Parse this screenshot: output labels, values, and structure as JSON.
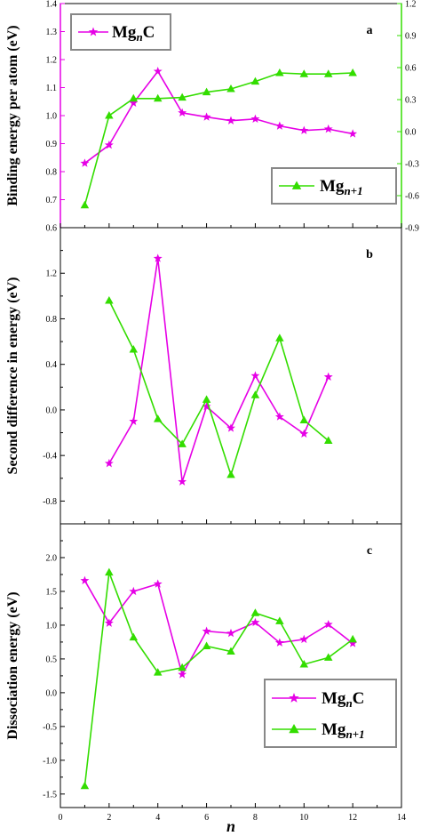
{
  "chart_data": [
    {
      "type": "line",
      "panel_label": "a",
      "ylabel": "Binding energy per atom (eV)",
      "ylim": [
        0.6,
        1.4
      ],
      "yticks": [
        0.6,
        0.7,
        0.8,
        0.9,
        1.0,
        1.1,
        1.2,
        1.3,
        1.4
      ],
      "ytick_labels": [
        "0.6",
        "0.7",
        "0.8",
        "0.9",
        "1.0",
        "1.1",
        "1.2",
        "1.3",
        "1.4"
      ],
      "y2lim": [
        -0.9,
        1.2
      ],
      "y2ticks": [
        -0.9,
        -0.6,
        -0.3,
        0.0,
        0.3,
        0.6,
        0.9,
        1.2
      ],
      "y2tick_labels": [
        "-0.9",
        "-0.6",
        "-0.3",
        "0.0",
        "0.3",
        "0.6",
        "0.9",
        "1.2"
      ],
      "xlim": [
        0,
        14
      ],
      "series": [
        {
          "name": "MgnC",
          "legend_base": "Mg",
          "legend_sub": "n",
          "legend_tail": "C",
          "legend_position": "top-left",
          "color": "#e600e6",
          "marker": "star",
          "axis": "left",
          "x": [
            1,
            2,
            3,
            4,
            5,
            6,
            7,
            8,
            9,
            10,
            11,
            12
          ],
          "y": [
            0.83,
            0.895,
            1.045,
            1.158,
            1.01,
            0.995,
            0.982,
            0.988,
            0.963,
            0.947,
            0.952,
            0.935
          ]
        },
        {
          "name": "Mgn+1",
          "legend_base": "Mg",
          "legend_sub": "n+1",
          "legend_tail": "",
          "legend_position": "bottom-right",
          "color": "#33dd00",
          "marker": "triangle",
          "axis": "right",
          "x": [
            1,
            2,
            3,
            4,
            5,
            6,
            7,
            8,
            9,
            10,
            11,
            12
          ],
          "y": [
            -0.69,
            0.15,
            0.31,
            0.31,
            0.32,
            0.37,
            0.4,
            0.47,
            0.55,
            0.54,
            0.54,
            0.55
          ]
        }
      ]
    },
    {
      "type": "line",
      "panel_label": "b",
      "ylabel": "Second difference in energy (eV)",
      "ylim": [
        -1.0,
        1.6
      ],
      "yticks": [
        -0.8,
        -0.4,
        0.0,
        0.4,
        0.8,
        1.2
      ],
      "ytick_labels": [
        "-0.8",
        "-0.4",
        "0.0",
        "0.4",
        "0.8",
        "1.2"
      ],
      "xlim": [
        0,
        14
      ],
      "series": [
        {
          "name": "MgnC",
          "color": "#e600e6",
          "marker": "star",
          "x": [
            2,
            3,
            4,
            5,
            6,
            7,
            8,
            9,
            10,
            11
          ],
          "y": [
            -0.47,
            -0.1,
            1.33,
            -0.63,
            0.03,
            -0.16,
            0.3,
            -0.06,
            -0.21,
            0.29
          ]
        },
        {
          "name": "Mgn+1",
          "color": "#33dd00",
          "marker": "triangle",
          "x": [
            2,
            3,
            4,
            5,
            6,
            7,
            8,
            9,
            10,
            11
          ],
          "y": [
            0.96,
            0.53,
            -0.08,
            -0.3,
            0.09,
            -0.57,
            0.13,
            0.63,
            -0.09,
            -0.27
          ]
        }
      ]
    },
    {
      "type": "line",
      "panel_label": "c",
      "ylabel": "Dissociation energy (eV)",
      "xlabel": "n",
      "ylim": [
        -1.7,
        2.5
      ],
      "yticks": [
        -1.5,
        -1.0,
        -0.5,
        0.0,
        0.5,
        1.0,
        1.5,
        2.0
      ],
      "ytick_labels": [
        "-1.5",
        "-1.0",
        "-0.5",
        "0.0",
        "0.5",
        "1.0",
        "1.5",
        "2.0"
      ],
      "xlim": [
        0,
        14
      ],
      "xticks": [
        0,
        2,
        4,
        6,
        8,
        10,
        12,
        14
      ],
      "xtick_labels": [
        "0",
        "2",
        "4",
        "6",
        "8",
        "10",
        "12",
        "14"
      ],
      "series": [
        {
          "name": "MgnC",
          "legend_base": "Mg",
          "legend_sub": "n",
          "legend_tail": "C",
          "legend_position": "bottom-right",
          "color": "#e600e6",
          "marker": "star",
          "x": [
            1,
            2,
            3,
            4,
            5,
            6,
            7,
            8,
            9,
            10,
            11,
            12
          ],
          "y": [
            1.66,
            1.03,
            1.5,
            1.61,
            0.27,
            0.91,
            0.88,
            1.04,
            0.74,
            0.79,
            1.01,
            0.73
          ]
        },
        {
          "name": "Mgn+1",
          "legend_base": "Mg",
          "legend_sub": "n+1",
          "legend_tail": "",
          "legend_position": "bottom-right",
          "color": "#33dd00",
          "marker": "triangle",
          "x": [
            1,
            2,
            3,
            4,
            5,
            6,
            7,
            8,
            9,
            10,
            11,
            12
          ],
          "y": [
            -1.38,
            1.78,
            0.82,
            0.3,
            0.37,
            0.69,
            0.61,
            1.18,
            1.06,
            0.42,
            0.52,
            0.79
          ]
        }
      ]
    }
  ]
}
